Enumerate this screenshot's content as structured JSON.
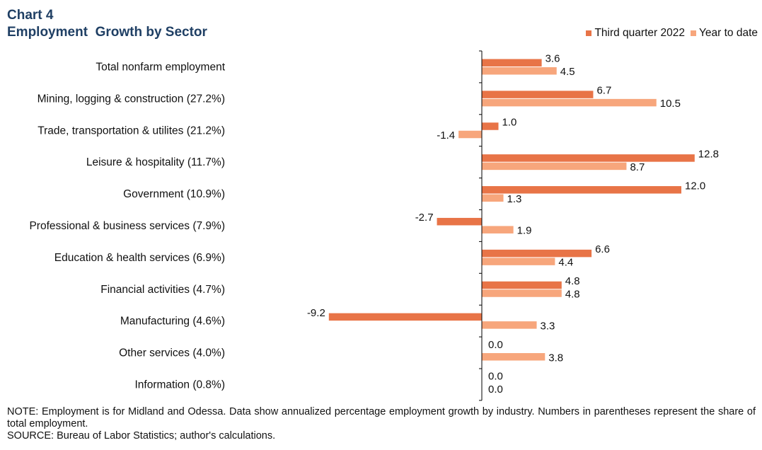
{
  "header": {
    "chart_number": "Chart 4",
    "title": "Employment  Growth by Sector"
  },
  "notes": {
    "note": "NOTE: Employment is for Midland and Odessa. Data show annualized percentage employment growth by industry. Numbers in parentheses represent the share of total employment.",
    "source": "SOURCE: Bureau of Labor Statistics; author's calculations."
  },
  "colors": {
    "series1": "#e87447",
    "series2": "#f7a67c",
    "axis": "#000000"
  },
  "chart_data": {
    "type": "bar",
    "orientation": "horizontal",
    "title": "Employment  Growth by Sector",
    "xlabel": "",
    "ylabel": "",
    "xlim": [
      -12.5,
      13.5
    ],
    "legend_position": "top-right",
    "categories": [
      "Total nonfarm employment",
      "Mining, logging & construction (27.2%)",
      "Trade, transportation & utilites (21.2%)",
      "Leisure & hospitality (11.7%)",
      "Government (10.9%)",
      "Professional & business services (7.9%)",
      "Education & health services (6.9%)",
      "Financial activities (4.7%)",
      "Manufacturing (4.6%)",
      "Other services (4.0%)",
      "Information (0.8%)"
    ],
    "series": [
      {
        "name": "Third quarter 2022",
        "values": [
          3.6,
          6.7,
          1.0,
          12.8,
          12.0,
          -2.7,
          6.6,
          4.8,
          -9.2,
          0.0,
          0.0
        ],
        "labels": [
          "3.6",
          "6.7",
          "1.0",
          "12.8",
          "12.0",
          "-2.7",
          "6.6",
          "4.8",
          "-9.2",
          "0.0",
          "0.0"
        ]
      },
      {
        "name": "Year to date",
        "values": [
          4.5,
          10.5,
          -1.4,
          8.7,
          1.3,
          1.9,
          4.4,
          4.8,
          3.3,
          3.8,
          0.0
        ],
        "labels": [
          "4.5",
          "10.5",
          "-1.4",
          "8.7",
          "1.3",
          "1.9",
          "4.4",
          "4.8",
          "3.3",
          "3.8",
          "0.0"
        ]
      }
    ]
  }
}
